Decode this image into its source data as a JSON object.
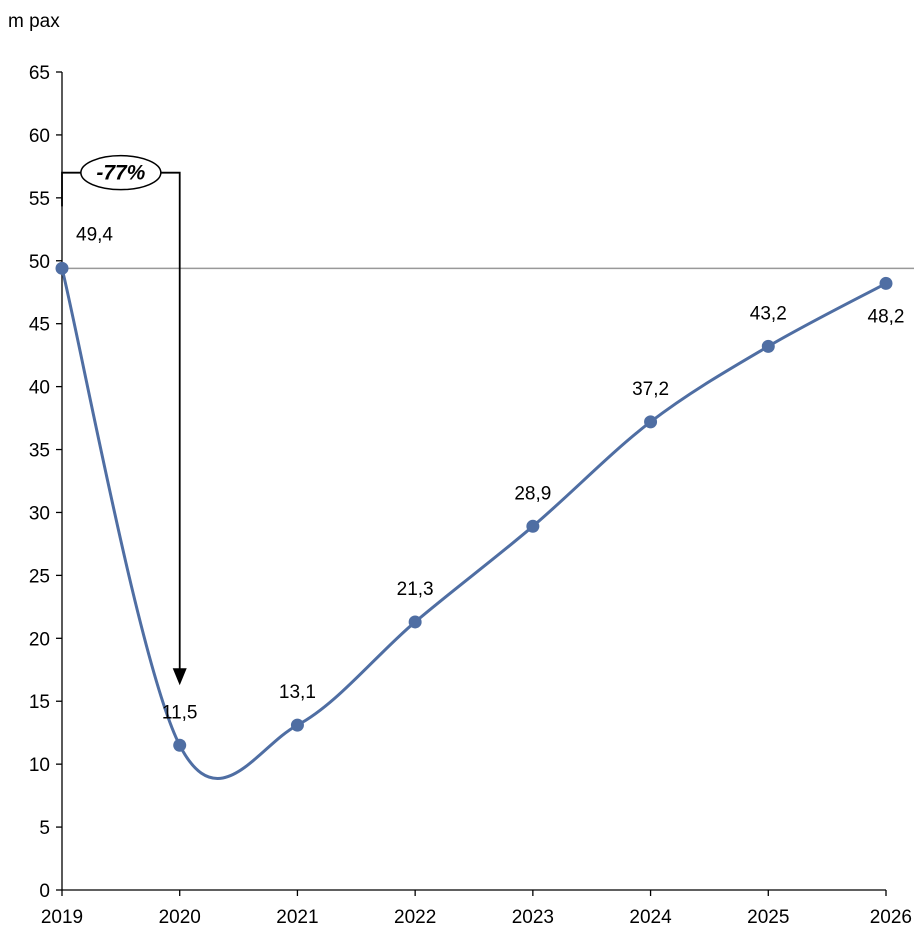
{
  "chart_data": {
    "type": "line",
    "title": "",
    "ylabel": "m pax",
    "xlabel": "",
    "categories": [
      "2019",
      "2020",
      "2021",
      "2022",
      "2023",
      "2024",
      "2025",
      "2026"
    ],
    "series": [
      {
        "values": [
          49.4,
          11.5,
          13.1,
          21.3,
          28.9,
          37.2,
          43.2,
          48.2
        ],
        "data_labels": [
          "49,4",
          "11,5",
          "13,1",
          "21,3",
          "28,9",
          "37,2",
          "43,2",
          "48,2"
        ]
      }
    ],
    "ylim": [
      0,
      65
    ],
    "yticks": [
      0,
      5,
      10,
      15,
      20,
      25,
      30,
      35,
      40,
      45,
      50,
      55,
      60,
      65
    ],
    "reference_line": 49.4,
    "annotation": {
      "text": "-77%",
      "from_category": "2019",
      "to_category": "2020",
      "bracket_level": 57
    },
    "grid": false,
    "legend": "none",
    "colors": {
      "series": "#4f6ea3",
      "reference_line": "#999999",
      "axis": "#000000"
    }
  }
}
